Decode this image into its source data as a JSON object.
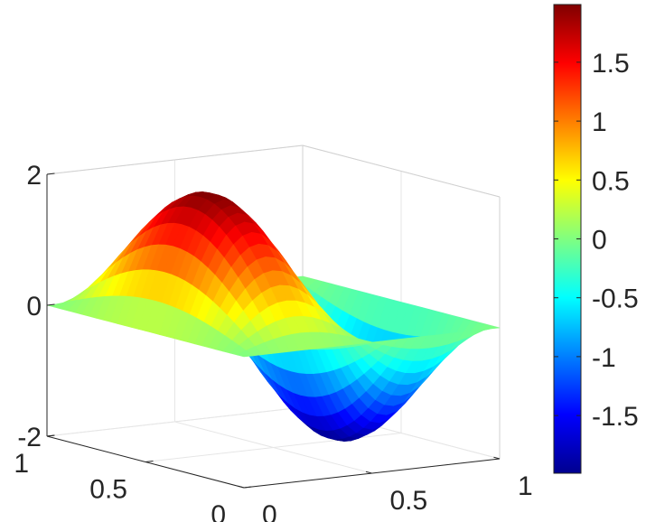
{
  "chart_data": {
    "type": "surface",
    "title": "",
    "xlabel": "",
    "ylabel": "",
    "zlabel": "",
    "x_range": [
      0,
      1
    ],
    "y_range": [
      0,
      1
    ],
    "z_range": [
      -2,
      2
    ],
    "x_ticks": [
      "0",
      "0.5",
      "1"
    ],
    "y_ticks": [
      "0",
      "0.5",
      "1"
    ],
    "z_ticks": [
      "-2",
      "0",
      "2"
    ],
    "grid": true,
    "colormap": "jet",
    "surface": {
      "description_function": "z = 2*sin(2*pi*x)*sin(pi*y)",
      "grid_n": 28,
      "peak": {
        "x": 0.25,
        "y": 0.5,
        "z": 2
      },
      "trough": {
        "x": 0.75,
        "y": 0.5,
        "z": -2
      }
    },
    "colorbar": {
      "ticks": [
        "1.5",
        "1",
        "0.5",
        "0",
        "-0.5",
        "-1",
        "-1.5"
      ],
      "tick_values": [
        1.5,
        1,
        0.5,
        0,
        -0.5,
        -1,
        -1.5
      ],
      "range": [
        -1.99,
        1.99
      ],
      "placement": "right"
    }
  }
}
